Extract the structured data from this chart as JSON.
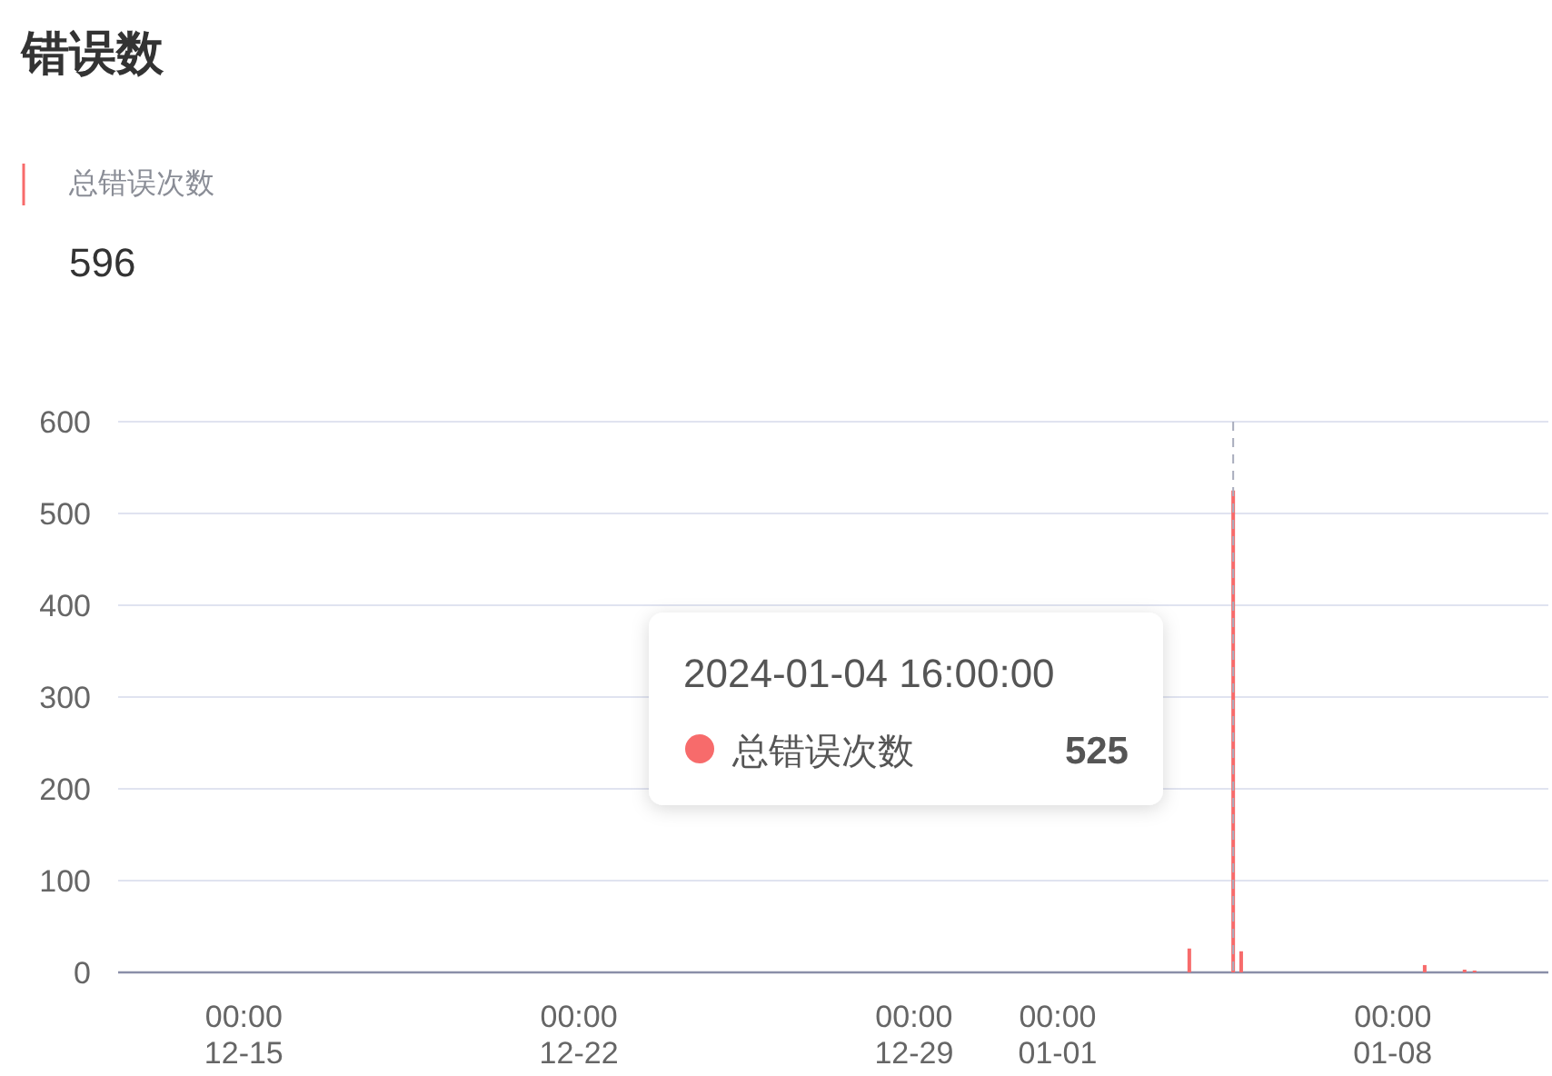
{
  "chart_data": {
    "type": "bar",
    "title": "错误数",
    "subtitle": "总错误次数",
    "x": [
      "2024-01-03T18:00",
      "2024-01-04T16:00",
      "2024-01-04T20:00",
      "2024-01-08T16:00",
      "2024-01-09T12:00",
      "2024-01-09T17:00"
    ],
    "series": [
      {
        "name": "总错误次数",
        "color": "#f76b6b",
        "values": [
          26,
          525,
          23,
          8,
          3,
          2
        ]
      }
    ],
    "xlim": [
      "2023-12-12T09:00",
      "2024-01-11T06:00"
    ],
    "xticks": [
      {
        "value": "2023-12-15",
        "label": "00:00\n12-15"
      },
      {
        "value": "2023-12-22",
        "label": "00:00\n12-22"
      },
      {
        "value": "2023-12-29",
        "label": "00:00\n12-29"
      },
      {
        "value": "2024-01-01",
        "label": "00:00\n01-01"
      },
      {
        "value": "2024-01-08",
        "label": "00:00\n01-08"
      }
    ],
    "ylim": [
      0,
      600
    ],
    "yticks": [
      0,
      100,
      200,
      300,
      400,
      500,
      600
    ],
    "grid": "y",
    "ref_lines": [
      {
        "axis": "x",
        "value": "2024-01-04T16:00",
        "color": "#a9adbd",
        "line_style": "dashed"
      }
    ],
    "annotations": [
      "596",
      "2024-01-04 16:00:00",
      "525"
    ]
  }
}
